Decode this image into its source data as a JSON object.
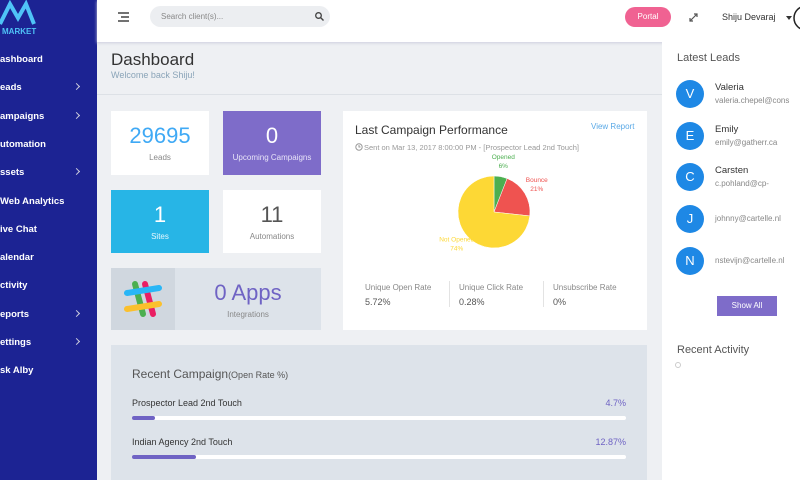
{
  "sidebar": {
    "brand": "MARKET",
    "menu": [
      "ashboard",
      "eads",
      "ampaigns",
      "utomation",
      "ssets",
      "Web Analytics",
      "ive Chat",
      "alendar",
      "ctivity",
      "eports",
      "ettings",
      "sk Alby"
    ]
  },
  "header": {
    "search_placeholder": "Search client(s)...",
    "portal": "Portal",
    "user": "Shiju Devaraj"
  },
  "dashboard": {
    "title": "Dashboard",
    "subtitle": "Welcome back Shiju!"
  },
  "stats": {
    "leads": {
      "value": "29695",
      "label": "Leads"
    },
    "upcoming": {
      "value": "0",
      "label": "Upcoming Campaigns"
    },
    "sites": {
      "value": "1",
      "label": "Sites"
    },
    "automations": {
      "value": "11",
      "label": "Automations"
    },
    "apps": {
      "value": "0 Apps",
      "label": "Integrations"
    }
  },
  "campaign": {
    "title": "Last Campaign Performance",
    "link": "View Report",
    "sent": "Sent on Mar 13, 2017 8:00:00 PM - [Prospector Lead 2nd Touch]",
    "pie": {
      "type": "pie",
      "categories": [
        "Opened",
        "Bounce",
        "Not Opened"
      ],
      "values": [
        6,
        21,
        74
      ],
      "value_labels": [
        "6%",
        "21%",
        "74%"
      ],
      "colors": [
        "#4caf50",
        "#ef5350",
        "#fdd835"
      ]
    },
    "rates": [
      {
        "label": "Unique Open Rate",
        "value": "5.72%"
      },
      {
        "label": "Unique Click Rate",
        "value": "0.28%"
      },
      {
        "label": "Unsubscribe Rate",
        "value": "0%"
      }
    ]
  },
  "recent": {
    "title": "Recent Campaign",
    "subtitle": "(Open Rate %)",
    "items": [
      {
        "name": "Prospector Lead 2nd Touch",
        "value": 4.7,
        "value_label": "4.7%"
      },
      {
        "name": "Indian Agency 2nd Touch",
        "value": 12.87,
        "value_label": "12.87%"
      }
    ]
  },
  "leads": {
    "title": "Latest Leads",
    "items": [
      {
        "initial": "V",
        "name": "Valeria",
        "email": "valeria.chepel@cons"
      },
      {
        "initial": "E",
        "name": "Emily",
        "email": "emily@gatherr.ca"
      },
      {
        "initial": "C",
        "name": "Carsten",
        "email": "c.pohland@cp-"
      },
      {
        "initial": "J",
        "email": "johnny@cartelle.nl"
      },
      {
        "initial": "N",
        "email": "nstevijn@cartelle.nl"
      }
    ],
    "button": "Show All"
  },
  "activity": {
    "title": "Recent Activity"
  }
}
